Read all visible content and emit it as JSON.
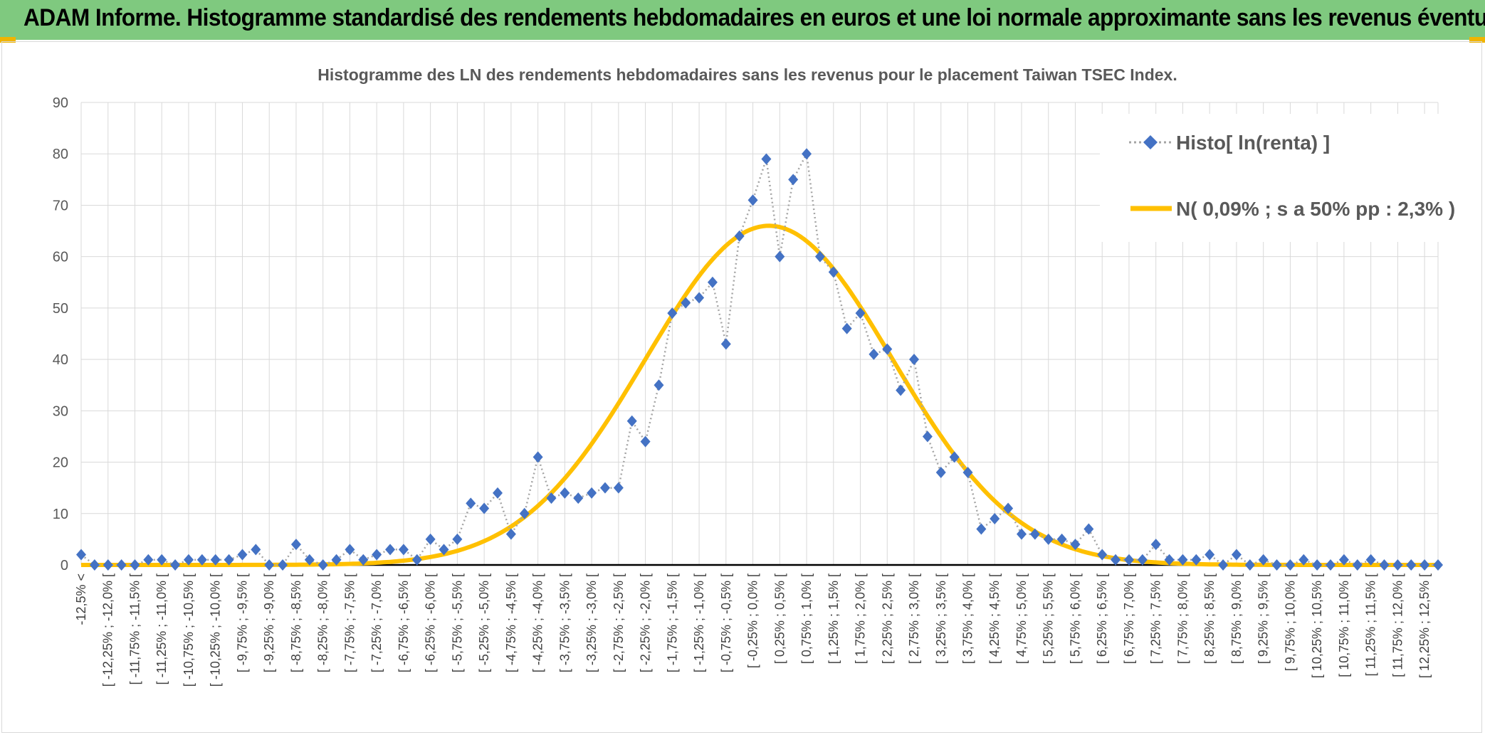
{
  "header": {
    "title": "ADAM Informe. Histogramme standardisé des rendements hebdomadaires en euros et une loi normale approximante sans les revenus éventuels"
  },
  "chart_data": {
    "type": "line",
    "title": "Histogramme des LN des rendements hebdomadaires sans les revenus pour le placement Taiwan TSEC Index.",
    "xlabel": "",
    "ylabel": "",
    "ylim": [
      0,
      90
    ],
    "yticks": [
      0,
      10,
      20,
      30,
      40,
      50,
      60,
      70,
      80,
      90
    ],
    "grid": true,
    "legend_position": "top-right",
    "categories_count": 102,
    "tick_labels": [
      "-12,5% <",
      "[ -12,25% ; -12,0% [",
      "[ -11,75% ; -11,5% [",
      "[ -11,25% ; -11,0% [",
      "[ -10,75% ; -10,5% [",
      "[ -10,25% ; -10,0% [",
      "[ -9,75% ; -9,5% [",
      "[ -9,25% ; -9,0% [",
      "[ -8,75% ; -8,5% [",
      "[ -8,25% ; -8,0% [",
      "[ -7,75% ; -7,5% [",
      "[ -7,25% ; -7,0% [",
      "[ -6,75% ; -6,5% [",
      "[ -6,25% ; -6,0% [",
      "[ -5,75% ; -5,5% [",
      "[ -5,25% ; -5,0% [",
      "[ -4,75% ; -4,5% [",
      "[ -4,25% ; -4,0% [",
      "[ -3,75% ; -3,5% [",
      "[ -3,25% ; -3,0% [",
      "[ -2,75% ; -2,5% [",
      "[ -2,25% ; -2,0% [",
      "[ -1,75% ; -1,5% [",
      "[ -1,25% ; -1,0% [",
      "[ -0,75% ; -0,5% [",
      "[ -0,25% ; 0,0% [",
      "[ 0,25% ; 0,5% [",
      "[ 0,75% ; 1,0% [",
      "[ 1,25% ; 1,5% [",
      "[ 1,75% ; 2,0% [",
      "[ 2,25% ; 2,5% [",
      "[ 2,75% ; 3,0% [",
      "[ 3,25% ; 3,5% [",
      "[ 3,75% ; 4,0% [",
      "[ 4,25% ; 4,5% [",
      "[ 4,75% ; 5,0% [",
      "[ 5,25% ; 5,5% [",
      "[ 5,75% ; 6,0% [",
      "[ 6,25% ; 6,5% [",
      "[ 6,75% ; 7,0% [",
      "[ 7,25% ; 7,5% [",
      "[ 7,75% ; 8,0% [",
      "[ 8,25% ; 8,5% [",
      "[ 8,75% ; 9,0% [",
      "[ 9,25% ; 9,5% [",
      "[ 9,75% ; 10,0% [",
      "[ 10,25% ; 10,5% [",
      "[ 10,75% ; 11,0% [",
      "[ 11,25% ; 11,5% [",
      "[ 11,75% ; 12,0% [",
      "[ 12,25% ; 12,5% ["
    ],
    "series": [
      {
        "name": "Histo[ ln(renta) ]",
        "kind": "markers-dotted",
        "color": "#4472c4",
        "values": [
          2,
          0,
          0,
          0,
          0,
          1,
          1,
          0,
          1,
          1,
          1,
          1,
          2,
          3,
          0,
          0,
          4,
          1,
          0,
          1,
          3,
          1,
          2,
          3,
          3,
          1,
          5,
          3,
          5,
          12,
          11,
          14,
          6,
          10,
          21,
          13,
          14,
          13,
          14,
          15,
          15,
          28,
          24,
          35,
          49,
          51,
          52,
          55,
          43,
          64,
          71,
          79,
          60,
          75,
          80,
          60,
          57,
          46,
          49,
          41,
          42,
          34,
          40,
          25,
          18,
          21,
          18,
          7,
          9,
          11,
          6,
          6,
          5,
          5,
          4,
          7,
          2,
          1,
          1,
          1,
          4,
          1,
          1,
          1,
          2,
          0,
          2,
          0,
          1,
          0,
          0,
          1,
          0,
          0,
          1,
          0,
          1,
          0,
          0,
          0,
          0,
          0
        ]
      },
      {
        "name": "N( 0,09% ; s a 50% pp : 2,3% )",
        "kind": "smooth-line",
        "color": "#ffc000",
        "mean_index": 51.2,
        "sd_index": 9.2,
        "peak": 66
      }
    ]
  }
}
